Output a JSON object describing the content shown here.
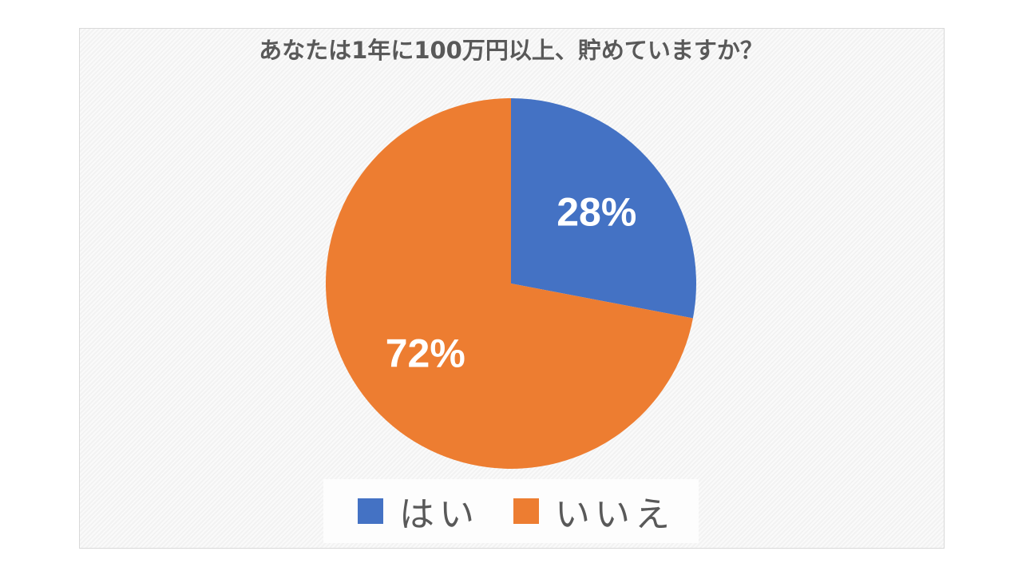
{
  "chart_data": {
    "type": "pie",
    "title": "あなたは1年に100万円以上、貯めていますか？",
    "categories": [
      "はい",
      "いいえ"
    ],
    "values": [
      28,
      72
    ],
    "data_labels": [
      "28%",
      "72%"
    ],
    "colors": [
      "#4472C4",
      "#ED7D31"
    ],
    "start_angle": "12 o'clock, clockwise",
    "legend_position": "bottom"
  }
}
